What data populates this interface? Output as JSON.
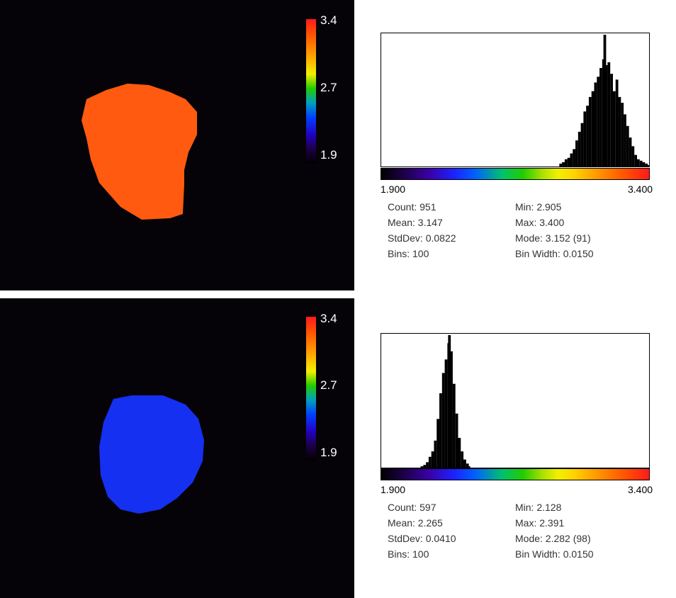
{
  "panels": [
    {
      "colorbar": {
        "max": "3.4",
        "mid": "2.7",
        "min": "1.9"
      },
      "cell_color": "#ff5a10",
      "histogram": {
        "axis_min": "1.900",
        "axis_max": "3.400",
        "stats": {
          "count": "Count: 951",
          "mean": "Mean: 3.147",
          "stddev": "StdDev: 0.0822",
          "bins": "Bins: 100",
          "min": "Min: 2.905",
          "max": "Max: 3.400",
          "mode": "Mode: 3.152 (91)",
          "bin_width": "Bin Width: 0.0150"
        }
      }
    },
    {
      "colorbar": {
        "max": "3.4",
        "mid": "2.7",
        "min": "1.9"
      },
      "cell_color": "#1530f0",
      "histogram": {
        "axis_min": "1.900",
        "axis_max": "3.400",
        "stats": {
          "count": "Count: 597",
          "mean": "Mean: 2.265",
          "stddev": "StdDev: 0.0410",
          "bins": "Bins: 100",
          "min": "Min: 2.128",
          "max": "Max: 2.391",
          "mode": "Mode: 2.282 (98)",
          "bin_width": "Bin Width: 0.0150"
        }
      }
    }
  ],
  "chart_data": [
    {
      "type": "bar",
      "xlim": [
        1.9,
        3.4
      ],
      "bin_width": 0.015,
      "x": [
        2.905,
        2.92,
        2.935,
        2.95,
        2.965,
        2.98,
        2.995,
        3.01,
        3.025,
        3.04,
        3.055,
        3.07,
        3.085,
        3.1,
        3.115,
        3.13,
        3.145,
        3.152,
        3.16,
        3.175,
        3.19,
        3.205,
        3.22,
        3.235,
        3.25,
        3.265,
        3.28,
        3.295,
        3.31,
        3.325,
        3.34,
        3.355,
        3.37,
        3.385,
        3.4
      ],
      "values": [
        2,
        3,
        5,
        6,
        9,
        12,
        18,
        24,
        30,
        38,
        42,
        48,
        52,
        58,
        62,
        68,
        74,
        91,
        70,
        72,
        64,
        52,
        60,
        48,
        44,
        36,
        28,
        20,
        14,
        8,
        5,
        4,
        3,
        2,
        1
      ]
    },
    {
      "type": "bar",
      "xlim": [
        1.9,
        3.4
      ],
      "bin_width": 0.015,
      "x": [
        2.128,
        2.143,
        2.158,
        2.173,
        2.188,
        2.203,
        2.218,
        2.233,
        2.248,
        2.263,
        2.278,
        2.282,
        2.293,
        2.308,
        2.323,
        2.338,
        2.353,
        2.368,
        2.383,
        2.391
      ],
      "values": [
        1,
        2,
        4,
        8,
        12,
        20,
        36,
        55,
        70,
        80,
        92,
        98,
        86,
        62,
        40,
        22,
        12,
        6,
        3,
        1
      ]
    }
  ]
}
